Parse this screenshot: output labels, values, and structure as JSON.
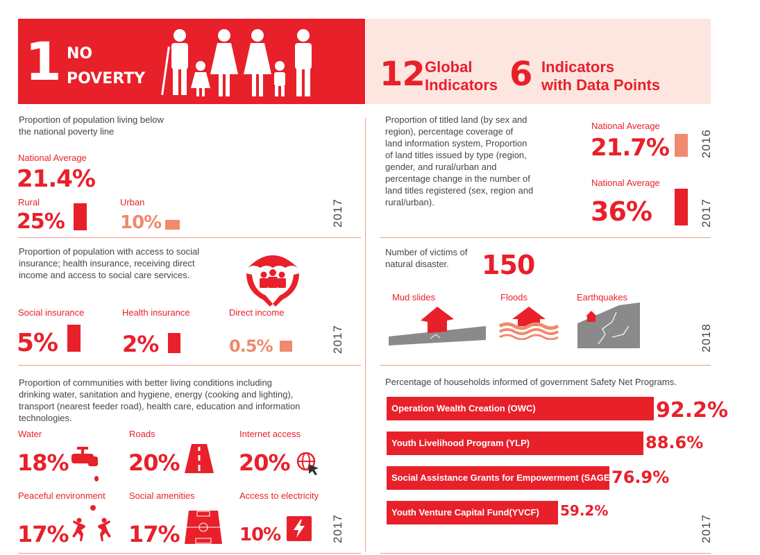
{
  "header": {
    "goal_number": "1",
    "goal_line1": "NO",
    "goal_line2": "POVERTY",
    "global_count": "12",
    "global_line1": "Global",
    "global_line2": "Indicators",
    "data_count": "6",
    "data_line1": "Indicators",
    "data_line2": "with Data Points"
  },
  "poverty_line": {
    "title_line1": "Proportion of population living below",
    "title_line2": "the national poverty line",
    "national_label": "National Average",
    "national_value": "21.4%",
    "rural_label": "Rural",
    "rural_value": "25%",
    "urban_label": "Urban",
    "urban_value": "10%",
    "year": "2017"
  },
  "land": {
    "lines": [
      "Proportion of titled land (by sex and",
      "region), percentage coverage of",
      "land information system, Proportion",
      "of land titles issued by type (region,",
      "gender, and rural/urban and",
      "percentage change in the number of",
      "land titles registered (sex, region and",
      "rural/urban)."
    ],
    "avg1_label": "National Average",
    "avg1_value": "21.7%",
    "avg1_year": "2016",
    "avg2_label": "National Average",
    "avg2_value": "36%",
    "avg2_year": "2017"
  },
  "social": {
    "lines": [
      "Proportion of population with access to social",
      "insurance; health insurance, receiving direct",
      "income and access to social care services."
    ],
    "social_label": "Social insurance",
    "social_value": "5%",
    "health_label": "Health insurance",
    "health_value": "2%",
    "direct_label": "Direct income",
    "direct_value": "0.5%",
    "year": "2017"
  },
  "disaster": {
    "title_line1": "Number of victims of",
    "title_line2": "natural disaster.",
    "value": "150",
    "mud_label": "Mud slides",
    "floods_label": "Floods",
    "quakes_label": "Earthquakes",
    "year": "2018"
  },
  "communities": {
    "lines": [
      "Proportion of communities with better living conditions including",
      "drinking water, sanitation and hygiene, energy (cooking and lighting),",
      "transport (nearest feeder road), health care, education and information",
      "technologies."
    ],
    "items": [
      {
        "label": "Water",
        "value": "18%"
      },
      {
        "label": "Roads",
        "value": "20%"
      },
      {
        "label": "Internet access",
        "value": "20%"
      },
      {
        "label": "Peaceful environment",
        "value": "17%"
      },
      {
        "label": "Social amenities",
        "value": "17%"
      },
      {
        "label": "Access to  electricity",
        "value": "10%"
      }
    ],
    "year": "2017"
  },
  "safety_net": {
    "title": "Percentage of households informed of government Safety Net Programs.",
    "programs": [
      {
        "name": "Operation Wealth Creation (OWC)",
        "value": "92.2%",
        "pct": 92.2
      },
      {
        "name": "Youth Livelihood Program (YLP)",
        "value": "88.6%",
        "pct": 88.6
      },
      {
        "name": "Social Assistance Grants for Empowerment (SAGE)",
        "value": "76.9%",
        "pct": 76.9
      },
      {
        "name": "Youth Venture Capital Fund(YVCF)",
        "value": "59.2%",
        "pct": 59.2
      }
    ],
    "year": "2017"
  },
  "colors": {
    "red": "#e8202a",
    "salmon": "#ef8a6e",
    "header_pink": "#fde6e0",
    "gray": "#8a8a8a"
  }
}
